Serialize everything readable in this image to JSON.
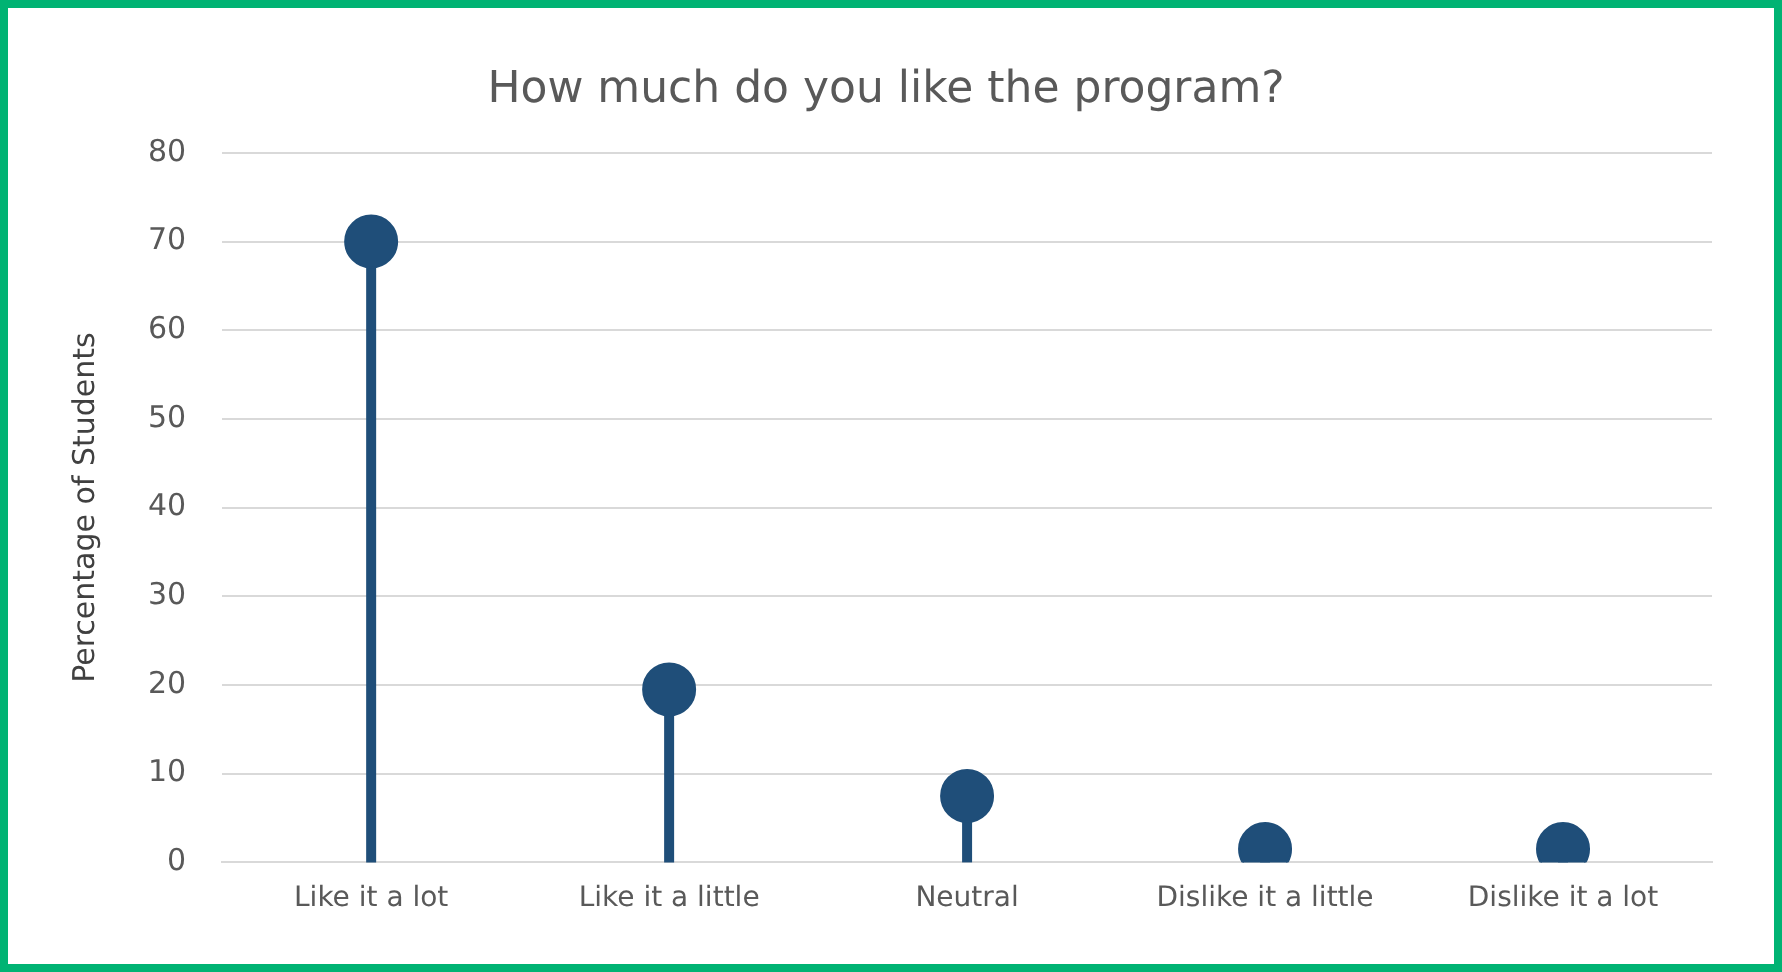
{
  "chart_data": {
    "type": "lollipop",
    "title": "How much do you like the program?",
    "ylabel": "Percentage of Students",
    "categories": [
      "Like it a lot",
      "Like it a little",
      "Neutral",
      "Dislike it a little",
      "Dislike it a lot"
    ],
    "values": [
      70,
      19.5,
      7.5,
      1.5,
      1.5
    ],
    "color": "#1f4e79",
    "marker": "circle",
    "ylim": [
      0,
      80
    ],
    "yticks": [
      0,
      10,
      20,
      30,
      40,
      50,
      60,
      70,
      80
    ],
    "grid": "y",
    "legend": false
  }
}
